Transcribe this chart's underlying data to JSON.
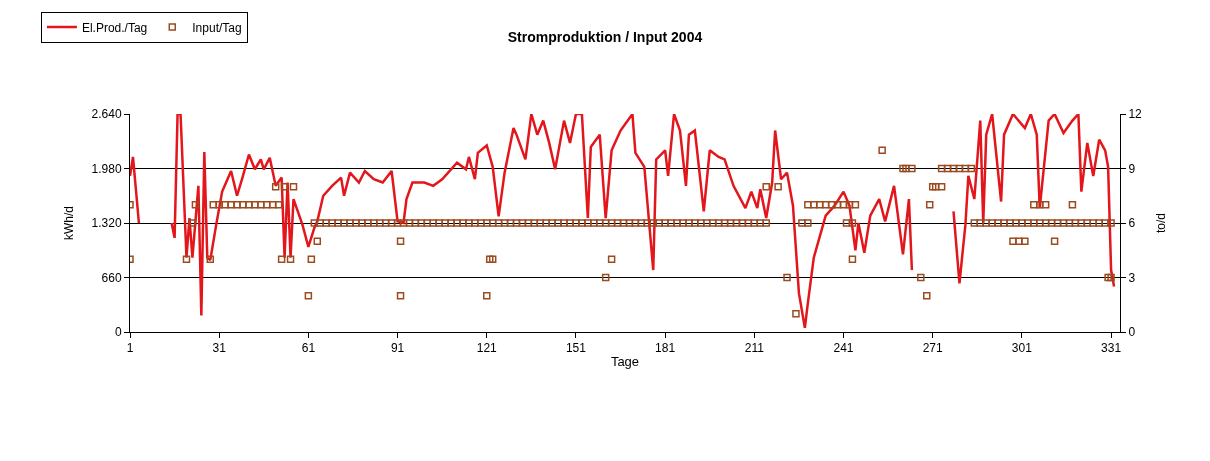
{
  "chart_data": {
    "type": "line",
    "title": "Stromproduktion / Input 2004",
    "xlabel": "Tage",
    "ylabel": "kWh/d",
    "y2label": "to/d",
    "xlim": [
      1,
      334
    ],
    "xticks": [
      1,
      31,
      61,
      91,
      121,
      151,
      181,
      211,
      241,
      271,
      301,
      331
    ],
    "ylim": [
      0,
      2640
    ],
    "yticks": [
      {
        "value": 0,
        "label": "0"
      },
      {
        "value": 660,
        "label": "660"
      },
      {
        "value": 1320,
        "label": "1.320"
      },
      {
        "value": 1980,
        "label": "1.980"
      },
      {
        "value": 2640,
        "label": "2.640"
      }
    ],
    "y2lim": [
      0,
      12
    ],
    "y2ticks": [
      0,
      3,
      6,
      9,
      12
    ],
    "grid": "y",
    "legend": "top left",
    "series": [
      {
        "name": "El.Prod./Tag",
        "color": "#e3161c",
        "marker": "none",
        "line_style": "solid",
        "x": [
          1,
          2,
          4,
          5,
          15,
          16,
          17,
          18,
          20,
          21,
          22,
          24,
          25,
          26,
          27,
          28,
          30,
          32,
          35,
          37,
          39,
          41,
          43,
          45,
          46,
          48,
          50,
          52,
          53,
          54,
          55,
          56,
          59,
          61,
          63,
          64,
          66,
          69,
          72,
          73,
          75,
          78,
          80,
          83,
          86,
          89,
          91,
          93,
          94,
          96,
          100,
          103,
          106,
          111,
          114,
          115,
          117,
          118,
          121,
          123,
          125,
          127,
          130,
          131,
          134,
          136,
          138,
          140,
          142,
          144,
          147,
          149,
          151,
          153,
          155,
          156,
          159,
          161,
          163,
          166,
          170,
          171,
          174,
          177,
          178,
          181,
          182,
          184,
          186,
          188,
          189,
          191,
          194,
          196,
          199,
          201,
          204,
          208,
          210,
          212,
          213,
          215,
          217,
          218,
          220,
          222,
          224,
          226,
          228,
          229,
          231,
          235,
          238,
          241,
          243,
          245,
          246,
          248,
          250,
          253,
          255,
          258,
          261,
          263,
          264,
          270,
          278,
          280,
          282,
          283,
          285,
          287,
          288,
          289,
          291,
          294,
          295,
          298,
          302,
          304,
          306,
          307,
          310,
          312,
          315,
          318,
          320,
          321,
          323,
          325,
          327,
          329,
          330,
          331,
          332
        ],
        "values": [
          1890,
          2120,
          1320,
          null,
          1320,
          1140,
          2640,
          2640,
          900,
          1380,
          900,
          1770,
          200,
          2180,
          900,
          870,
          1300,
          1700,
          1950,
          1650,
          1890,
          2150,
          1970,
          2090,
          1970,
          2110,
          1770,
          1870,
          900,
          1810,
          900,
          1610,
          1300,
          1030,
          1260,
          1340,
          1650,
          1770,
          1870,
          1650,
          1930,
          1810,
          1950,
          1850,
          1810,
          1950,
          1340,
          1320,
          1610,
          1810,
          1810,
          1770,
          1850,
          2050,
          1970,
          2120,
          1850,
          2170,
          2260,
          2000,
          1400,
          1930,
          2470,
          2390,
          2090,
          2640,
          2390,
          2560,
          2290,
          1970,
          2560,
          2290,
          2640,
          2640,
          1380,
          2240,
          2390,
          1380,
          2200,
          2440,
          2640,
          2170,
          2000,
          750,
          2090,
          2200,
          1890,
          2640,
          2440,
          1770,
          2390,
          2440,
          1460,
          2200,
          2120,
          2090,
          1770,
          1500,
          1700,
          1500,
          1730,
          1380,
          1810,
          2440,
          1850,
          1930,
          1530,
          470,
          50,
          350,
          900,
          1410,
          1530,
          1700,
          1530,
          990,
          1320,
          960,
          1410,
          1610,
          1340,
          1770,
          940,
          1610,
          750,
          null,
          1460,
          590,
          1300,
          1890,
          1610,
          2560,
          1320,
          2390,
          2640,
          1580,
          2390,
          2640,
          2470,
          2640,
          2390,
          1500,
          2560,
          2640,
          2410,
          2560,
          2640,
          1700,
          2290,
          1890,
          2330,
          2200,
          2000,
          750,
          550
        ]
      },
      {
        "name": "Input/Tag",
        "type": "scatter",
        "axis": "y2",
        "color": "#9c4a1e",
        "marker": "square",
        "x": [
          1,
          1,
          20,
          22,
          23,
          28,
          29,
          31,
          33,
          35,
          37,
          39,
          41,
          43,
          45,
          47,
          49,
          51,
          50,
          53,
          56,
          52,
          55,
          61,
          64,
          62,
          63,
          65,
          67,
          69,
          71,
          73,
          75,
          77,
          79,
          81,
          83,
          85,
          87,
          89,
          91,
          93,
          95,
          97,
          99,
          101,
          103,
          105,
          107,
          109,
          111,
          113,
          115,
          117,
          119,
          121,
          123,
          125,
          127,
          129,
          131,
          133,
          135,
          137,
          139,
          141,
          143,
          145,
          147,
          149,
          151,
          153,
          155,
          157,
          159,
          161,
          163,
          165,
          167,
          169,
          171,
          173,
          175,
          177,
          179,
          181,
          183,
          185,
          187,
          189,
          191,
          193,
          195,
          197,
          199,
          201,
          203,
          205,
          207,
          209,
          211,
          213,
          215,
          92,
          92,
          122,
          123,
          121,
          163,
          161,
          215,
          219,
          254,
          222,
          225,
          227,
          229,
          229,
          231,
          233,
          235,
          237,
          239,
          241,
          243,
          245,
          242,
          244,
          244,
          261,
          262,
          264,
          271,
          272,
          274,
          270,
          267,
          269,
          274,
          276,
          278,
          280,
          282,
          284,
          285,
          287,
          289,
          291,
          293,
          295,
          297,
          299,
          301,
          303,
          305,
          307,
          309,
          311,
          313,
          315,
          317,
          319,
          321,
          323,
          325,
          327,
          329,
          331,
          298,
          300,
          302,
          312,
          305,
          307,
          309,
          318,
          330,
          331
        ],
        "values": [
          4,
          7,
          4,
          6,
          7,
          4,
          7,
          7,
          7,
          7,
          7,
          7,
          7,
          7,
          7,
          7,
          7,
          7,
          8,
          8,
          8,
          4,
          4,
          2,
          5,
          4,
          6,
          6,
          6,
          6,
          6,
          6,
          6,
          6,
          6,
          6,
          6,
          6,
          6,
          6,
          6,
          6,
          6,
          6,
          6,
          6,
          6,
          6,
          6,
          6,
          6,
          6,
          6,
          6,
          6,
          6,
          6,
          6,
          6,
          6,
          6,
          6,
          6,
          6,
          6,
          6,
          6,
          6,
          6,
          6,
          6,
          6,
          6,
          6,
          6,
          6,
          6,
          6,
          6,
          6,
          6,
          6,
          6,
          6,
          6,
          6,
          6,
          6,
          6,
          6,
          6,
          6,
          6,
          6,
          6,
          6,
          6,
          6,
          6,
          6,
          6,
          6,
          6,
          5,
          2,
          4,
          4,
          2,
          4,
          3,
          8,
          8,
          10,
          3,
          1,
          6,
          6,
          7,
          7,
          7,
          7,
          7,
          7,
          7,
          7,
          7,
          6,
          6,
          4,
          9,
          9,
          9,
          8,
          8,
          8,
          7,
          3,
          2,
          9,
          9,
          9,
          9,
          9,
          9,
          6,
          6,
          6,
          6,
          6,
          6,
          6,
          6,
          6,
          6,
          6,
          6,
          6,
          6,
          6,
          6,
          6,
          6,
          6,
          6,
          6,
          6,
          6,
          6,
          5,
          5,
          5,
          5,
          7,
          7,
          7,
          7,
          3,
          3
        ]
      }
    ]
  }
}
